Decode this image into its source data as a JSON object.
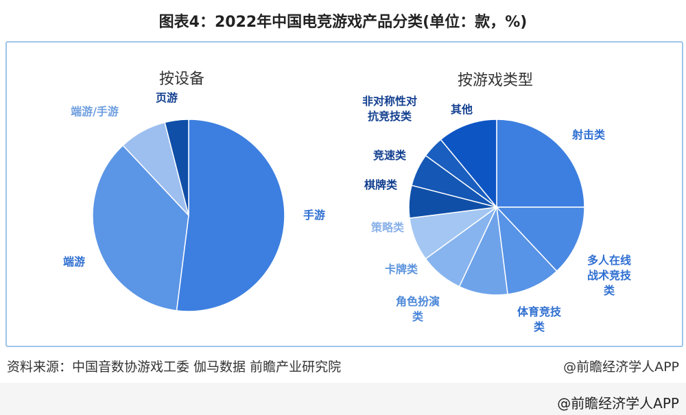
{
  "title": "图表4：2022年中国电竞游戏产品分类(单位：款，%)",
  "footer": {
    "source": "资料来源：中国音数协游戏工委 伽马数据 前瞻产业研究院",
    "brand": "@前瞻经济学人APP",
    "bottom_brand": "@前瞻经济学人APP"
  },
  "chart_data": [
    {
      "type": "pie",
      "title": "按设备",
      "categories": [
        "手游",
        "端游",
        "端游/手游",
        "页游"
      ],
      "values": [
        52,
        36,
        8,
        4
      ],
      "colors": [
        "#3d7fe0",
        "#5b95e6",
        "#9dbff0",
        "#0f4fa8"
      ],
      "label_colors": [
        "#2f6fd1",
        "#2f6fd1",
        "#6f9fe0",
        "#123f8f"
      ]
    },
    {
      "type": "pie",
      "title": "按游戏类型",
      "categories": [
        "射击类",
        "多人在线战术竞技类",
        "体育竞技类",
        "角色扮演类",
        "卡牌类",
        "策略类",
        "棋牌类",
        "竞速类",
        "非对称性对抗竞技类",
        "其他"
      ],
      "values": [
        25,
        13,
        10,
        9,
        8,
        8,
        6,
        6,
        4,
        11
      ],
      "colors": [
        "#3d7fe0",
        "#4a89e3",
        "#5793e6",
        "#6ea3ea",
        "#87b4ee",
        "#a3c6f2",
        "#0f4fa8",
        "#1457b5",
        "#1a5fbf",
        "#0e55c4"
      ],
      "label_colors": [
        "#2f6fd1",
        "#2f6fd1",
        "#2f6fd1",
        "#4a86d8",
        "#5a92dc",
        "#8ab2e8",
        "#123f8f",
        "#123f8f",
        "#123f8f",
        "#123f8f"
      ],
      "label_lines": [
        [
          "射击类"
        ],
        [
          "多人在线",
          "战术竞技",
          "类"
        ],
        [
          "体育竞技",
          "类"
        ],
        [
          "角色扮演",
          "类"
        ],
        [
          "卡牌类"
        ],
        [
          "策略类"
        ],
        [
          "棋牌类"
        ],
        [
          "竞速类"
        ],
        [
          "非对称性对",
          "抗竞技类"
        ],
        [
          "其他"
        ]
      ]
    }
  ]
}
